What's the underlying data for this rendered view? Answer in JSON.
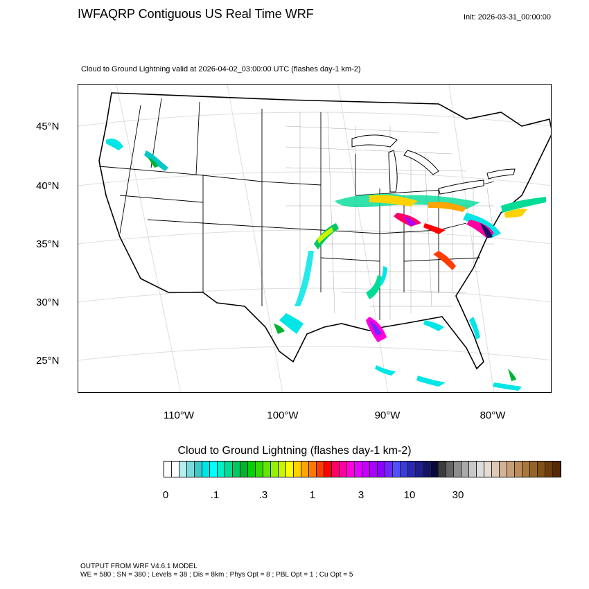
{
  "header": {
    "title": "IWFAQRP Contiguous US Real Time WRF",
    "init": "Init: 2026-03-31_00:00:00",
    "subtitle": "Cloud to Ground Lightning valid at 2026-04-02_03:00:00 UTC   (flashes day-1 km-2)"
  },
  "map": {
    "lat_labels": [
      "45°N",
      "40°N",
      "35°N",
      "30°N",
      "25°N"
    ],
    "lon_labels": [
      "110°W",
      "100°W",
      "90°W",
      "80°W"
    ]
  },
  "colorbar": {
    "title": "Cloud to Ground Lightning  (flashes day-1 km-2)",
    "tick_labels": [
      "0",
      ".1",
      ".3",
      "1",
      "3",
      "10",
      "30"
    ],
    "colors": [
      "#ffffff",
      "#ffffff",
      "#b4f0f0",
      "#78dcdc",
      "#3cc8c8",
      "#00e6e6",
      "#00ffff",
      "#00f0c8",
      "#00dc96",
      "#00c864",
      "#00b432",
      "#00d200",
      "#32dc00",
      "#64e600",
      "#96f000",
      "#c8f500",
      "#ffff00",
      "#ffd200",
      "#ffa500",
      "#ff7800",
      "#ff3c00",
      "#ff0000",
      "#ff0064",
      "#ff00a0",
      "#ff00dc",
      "#e600ff",
      "#c800ff",
      "#aa00ff",
      "#8c00ff",
      "#6e28ff",
      "#5050ff",
      "#3c3cdc",
      "#2828b4",
      "#1e1e8c",
      "#141464",
      "#0a0a3c",
      "#3c3c3c",
      "#646464",
      "#8c8c8c",
      "#aaaaaa",
      "#c8c8c8",
      "#dcdcdc",
      "#e6dcd2",
      "#dcc8b4",
      "#d2b496",
      "#c8a078",
      "#be8c5a",
      "#aa783c",
      "#966428",
      "#825014",
      "#6e3c0a",
      "#5a2800"
    ]
  },
  "footer": {
    "line1": "OUTPUT FROM WRF V4.6.1 MODEL",
    "line2": "WE = 580 ; SN = 380 ; Levels = 38 ; Dis = 8km ; Phys Opt = 8 ; PBL Opt = 1 ; Cu Opt = 5"
  }
}
